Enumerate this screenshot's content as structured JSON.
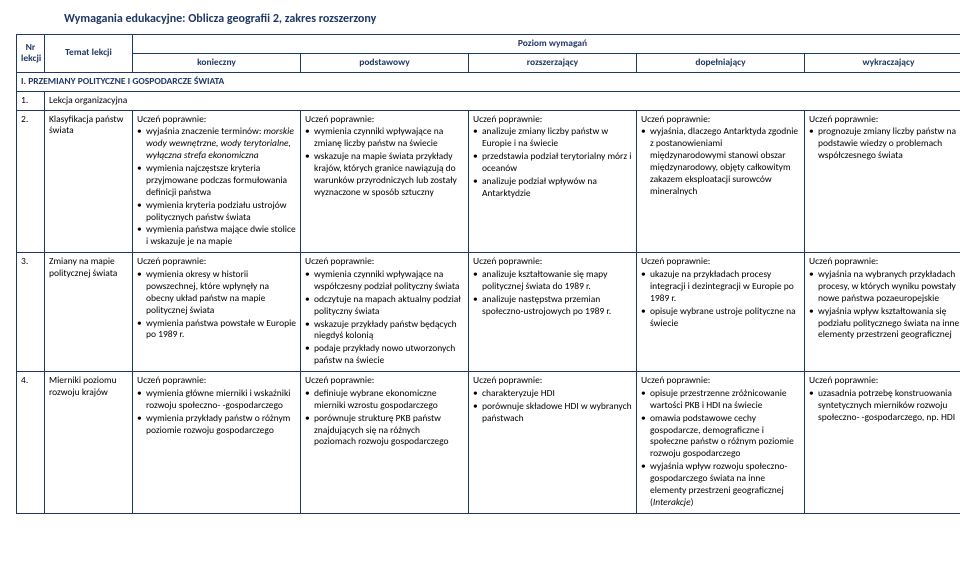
{
  "title": "Wymagania edukacyjne: Oblicza geografii 2, zakres rozszerzony",
  "headers": {
    "level_title": "Poziom wymagań",
    "nr": "Nr lekcji",
    "topic": "Temat lekcji",
    "l1": "konieczny",
    "l2": "podstawowy",
    "l3": "rozszerzający",
    "l4": "dopełniający",
    "l5": "wykraczający"
  },
  "section": "I.    PRZEMIANY POLITYCZNE I GOSPODARCZE ŚWIATA",
  "ucz": "Uczeń poprawnie:",
  "rows": [
    {
      "nr": "1.",
      "topic": "Lekcja organizacyjna",
      "cells": [
        "",
        "",
        "",
        "",
        ""
      ]
    },
    {
      "nr": "2.",
      "topic": "Klasyfikacja państw świata",
      "l1": [
        "wyjaśnia znaczenie terminów: <span class=\"italic\">morskie wody wewnętrzne, wody terytorialne, wyłączna strefa ekonomiczna</span>",
        "wymienia najczęstsze kryteria przyjmowane podczas formułowania definicji państwa",
        "wymienia kryteria podziału ustrojów politycznych państw świata",
        "wymienia państwa mające dwie stolice i wskazuje je na mapie"
      ],
      "l2": [
        "wymienia czynniki wpływające na zmianę liczby państw na świecie",
        "wskazuje na mapie świata przykłady krajów, których granice nawiązują do warunków przyrodniczych lub zostały wyznaczone w sposób sztuczny"
      ],
      "l3": [
        "analizuje zmiany liczby państw w Europie i na świecie",
        "przedstawia podział terytorialny mórz i oceanów",
        "analizuje podział wpływów na Antarktydzie"
      ],
      "l4": [
        "wyjaśnia, dlaczego Antarktyda zgodnie z postanowieniami międzynarodowymi stanowi obszar międzynarodowy, objęty całkowitym zakazem eksploatacji surowców mineralnych"
      ],
      "l5": [
        "prognozuje zmiany liczby państw na podstawie wiedzy o problemach współczesnego świata"
      ]
    },
    {
      "nr": "3.",
      "topic": "Zmiany na mapie politycznej świata",
      "l1": [
        "wymienia okresy w historii powszechnej, które wpłynęły na obecny układ państw na mapie politycznej świata",
        "wymienia państwa powstałe w Europie po 1989 r."
      ],
      "l2": [
        "wymienia czynniki wpływające na współczesny podział polityczny świata",
        "odczytuje na mapach aktualny podział polityczny świata",
        "wskazuje przykłady państw będących niegdyś kolonią",
        "podaje przykłady nowo utworzonych państw na świecie"
      ],
      "l3": [
        "analizuje kształtowanie się mapy politycznej świata do 1989 r.",
        "analizuje następstwa przemian społeczno-ustrojowych po 1989 r."
      ],
      "l4": [
        "ukazuje na przykładach procesy integracji i dezintegracji w Europie po 1989 r.",
        "opisuje wybrane ustroje polityczne na świecie"
      ],
      "l5": [
        "wyjaśnia na wybranych przykładach procesy, w których wyniku powstały nowe państwa pozaeuropejskie",
        "wyjaśnia wpływ kształtowania się podziału politycznego świata na inne elementy przestrzeni geograficznej"
      ]
    },
    {
      "nr": "4.",
      "topic": "Mierniki poziomu rozwoju krajów",
      "l1": [
        "wymienia główne mierniki i wskaźniki rozwoju społeczno- -gospodarczego",
        "wymienia przykłady państw o różnym poziomie rozwoju gospodarczego"
      ],
      "l2": [
        "definiuje wybrane ekonomiczne mierniki wzrostu gospodarczego",
        "porównuje strukturę PKB państw znajdujących się na różnych poziomach rozwoju gospodarczego"
      ],
      "l3": [
        "charakteryzuje HDI",
        "porównuje składowe HDI w wybranych państwach"
      ],
      "l4": [
        "opisuje przestrzenne zróżnicowanie wartości PKB i HDI na świecie",
        "omawia podstawowe cechy gospodarcze, demograficzne i społeczne państw o różnym poziomie rozwoju gospodarczego",
        "wyjaśnia wpływ rozwoju społeczno-gospodarczego świata na inne elementy przestrzeni geograficznej (<span class=\"italic\">Interakcje</span>)"
      ],
      "l5": [
        "uzasadnia potrzebę konstruowania syntetycznych mierników rozwoju społeczno- -gospodarczego, np. HDI"
      ]
    }
  ]
}
